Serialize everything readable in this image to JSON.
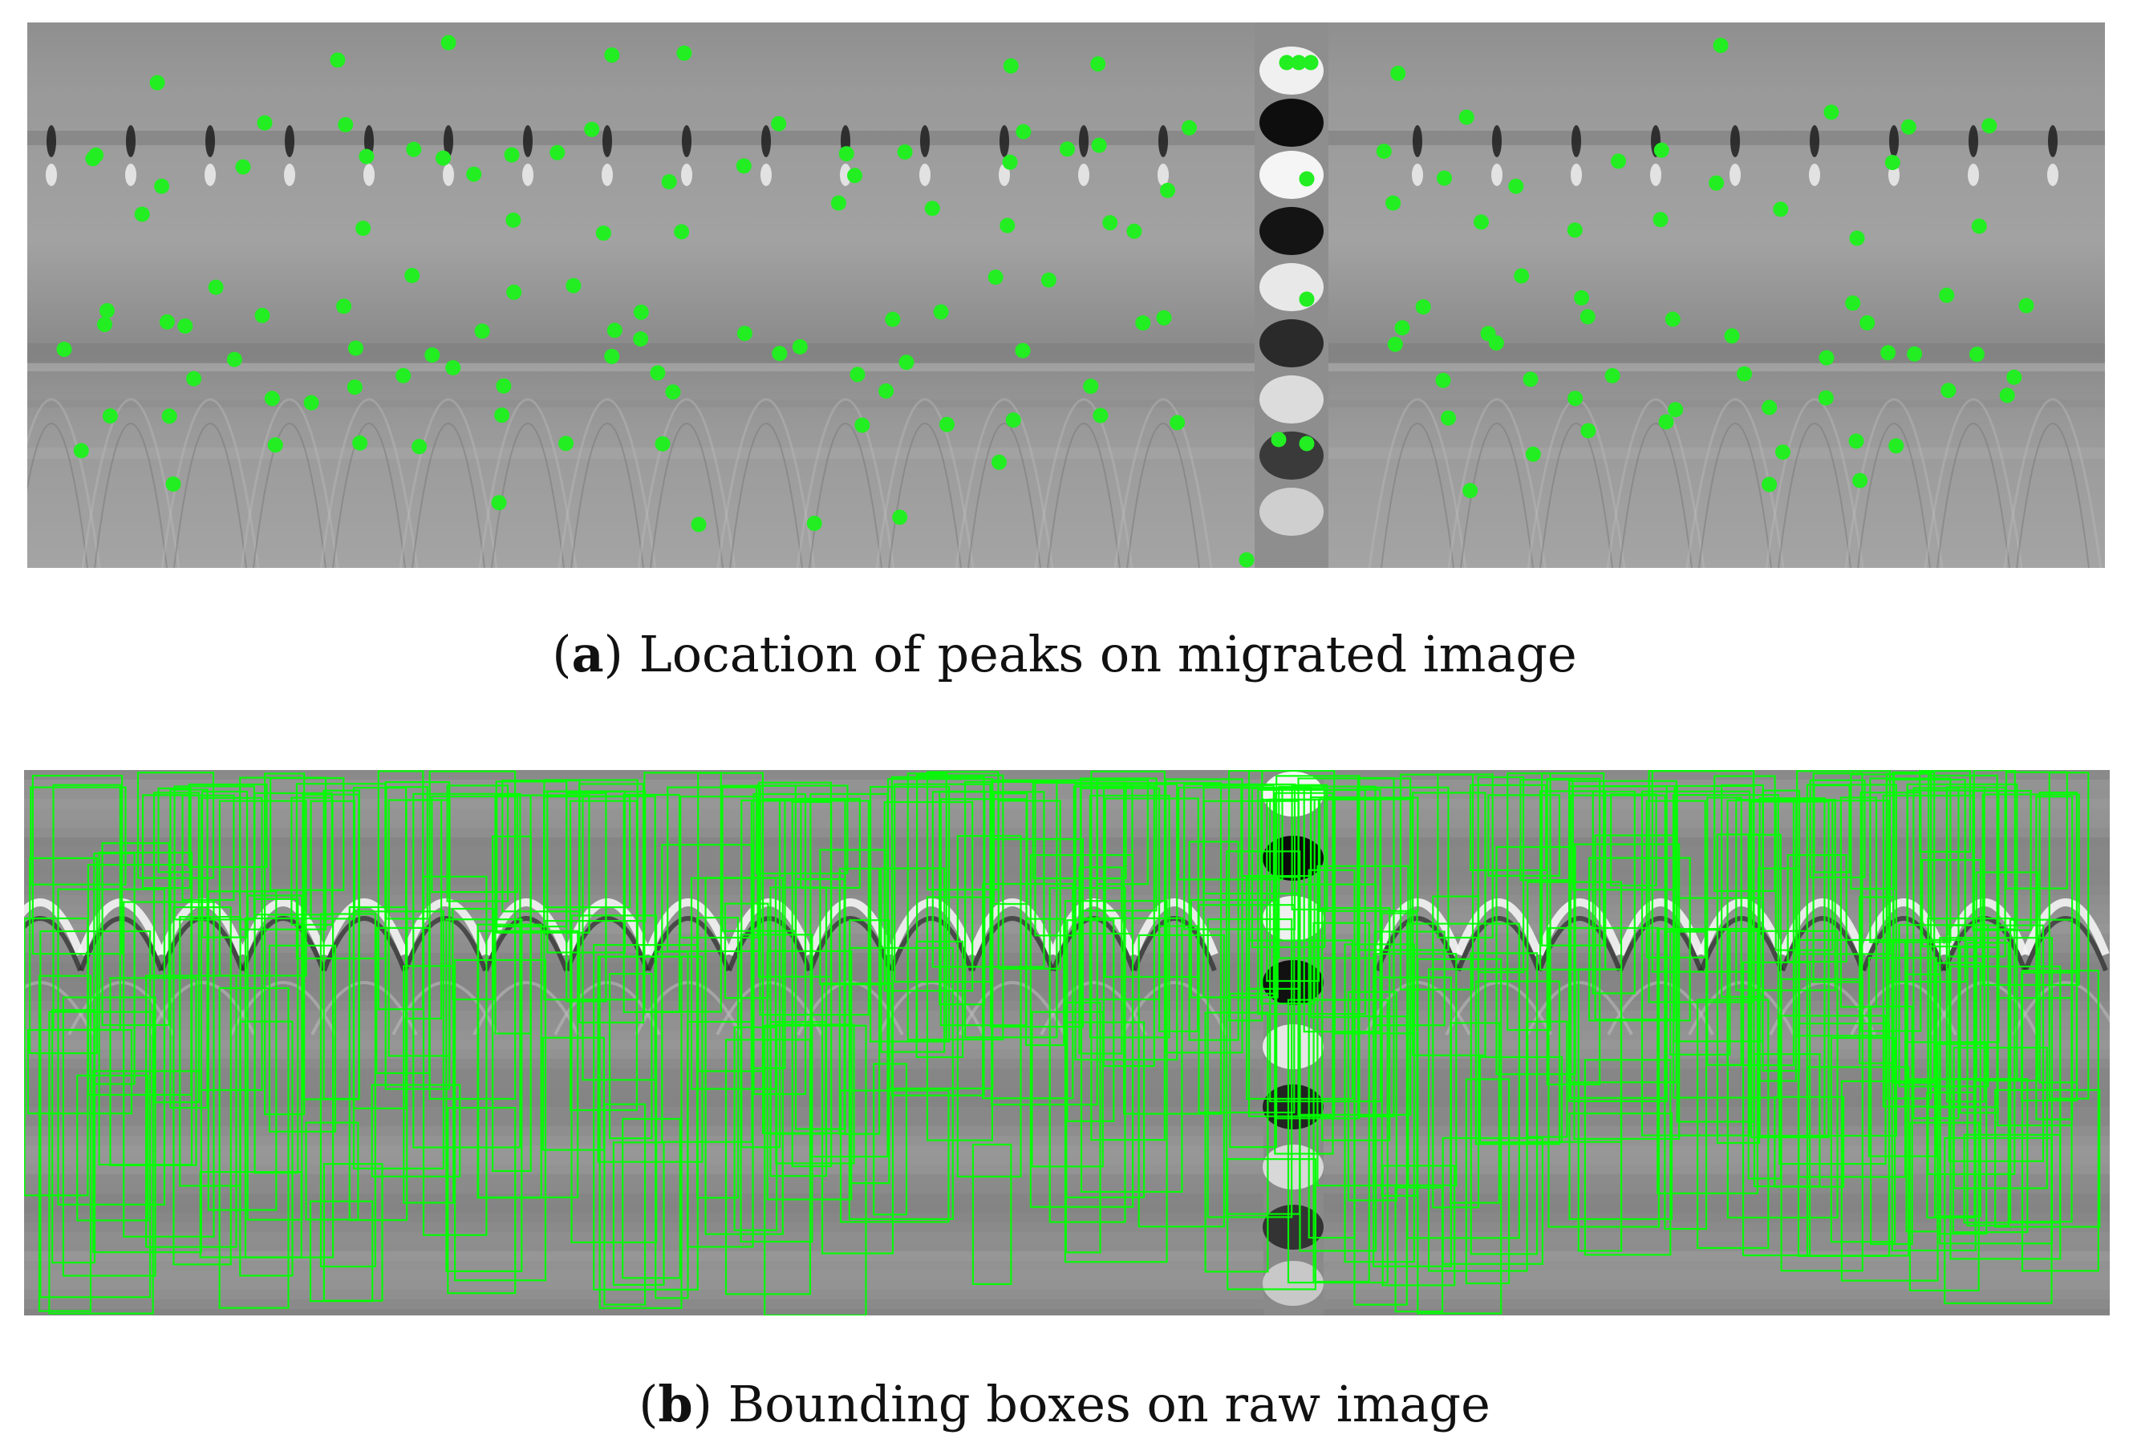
{
  "figure": {
    "panel_a": {
      "label": "a",
      "caption": "Location of peaks on migrated image",
      "marker_color": "#22ee22"
    },
    "panel_b": {
      "label": "b",
      "caption": "Bounding boxes on raw image",
      "box_color": "#00ff00"
    }
  }
}
